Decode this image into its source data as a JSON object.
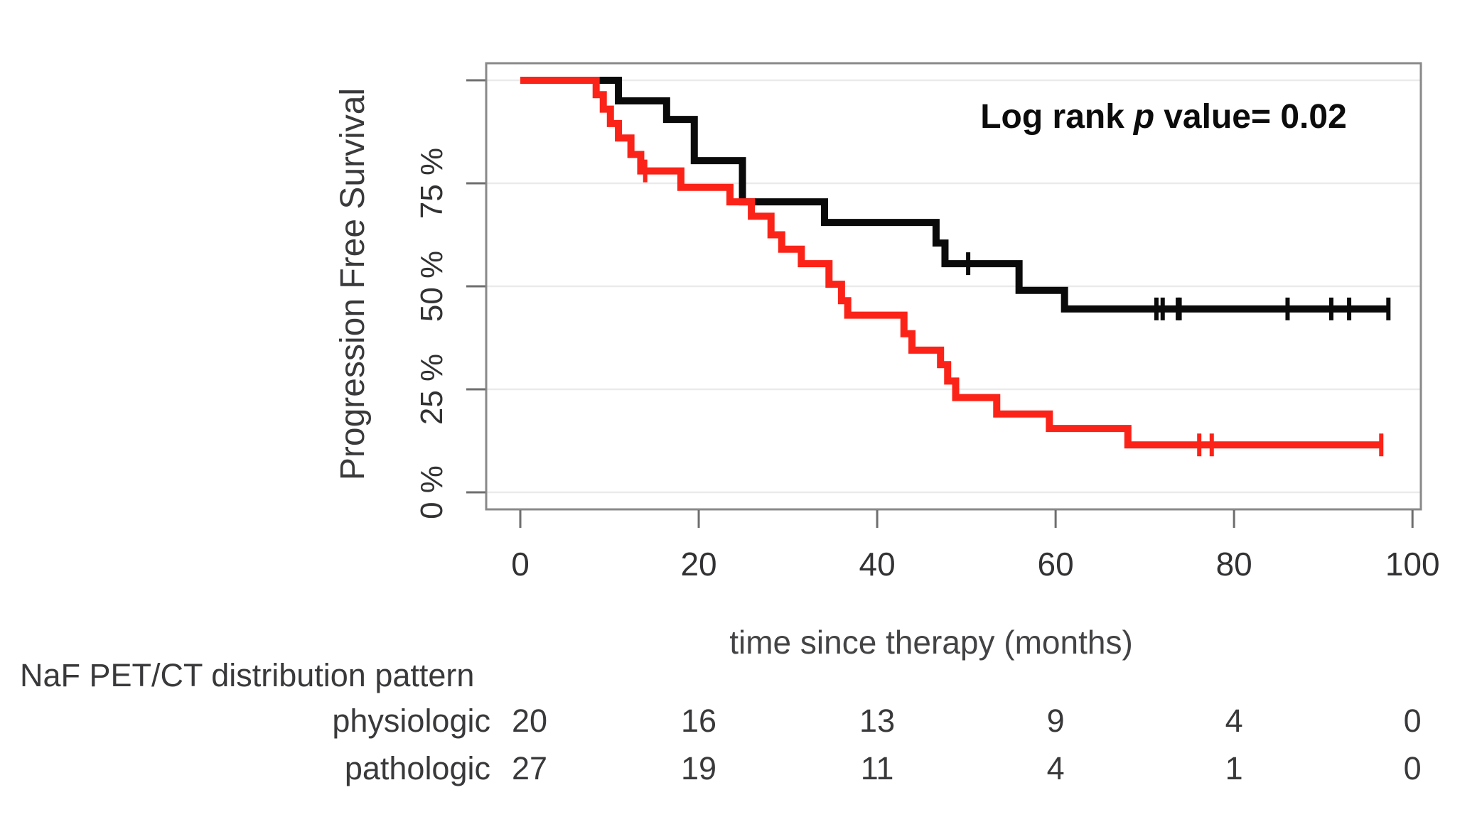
{
  "annotation": {
    "prefix": "Log rank",
    "italic_term": "p",
    "suffix": "value= 0.02",
    "full_text": "Log rank p value= 0.02"
  },
  "axes": {
    "y_label": "Progression Free Survival",
    "x_label": "time since therapy (months)",
    "x_ticks": [
      0,
      20,
      40,
      60,
      80,
      100
    ],
    "y_tick_labels": [
      "0 %",
      "25 %",
      "50 %",
      "75 %"
    ],
    "y_tick_values": [
      0,
      25,
      50,
      75
    ],
    "y_unlabeled_tick": 100
  },
  "risk_table": {
    "header": "NaF PET/CT distribution pattern",
    "time_points": [
      0,
      20,
      40,
      60,
      80,
      100
    ],
    "rows": [
      {
        "label": "physiologic",
        "counts": [
          20,
          16,
          13,
          9,
          4,
          0
        ],
        "count_color": "#2e2e30"
      },
      {
        "label": "pathologic",
        "counts": [
          27,
          19,
          11,
          4,
          1,
          0
        ],
        "count_color": "#f9473f"
      }
    ]
  },
  "chart_data": {
    "type": "line",
    "subtype": "kaplan-meier-step",
    "title": "",
    "xlabel": "time since therapy (months)",
    "ylabel": "Progression Free Survival",
    "xlim": [
      0,
      100
    ],
    "ylim_percent": [
      0,
      100
    ],
    "grid_percent_lines": [
      0,
      25,
      50,
      75,
      100
    ],
    "annotation": "Log rank p value= 0.02",
    "series": [
      {
        "name": "physiologic",
        "color": "#0a0a0a",
        "n_start": 20,
        "steps": [
          [
            0,
            100
          ],
          [
            11,
            95
          ],
          [
            16.4,
            90.5
          ],
          [
            19.5,
            80.5
          ],
          [
            24.9,
            70.5
          ],
          [
            34.1,
            65.5
          ],
          [
            46.6,
            60.5
          ],
          [
            47.6,
            55.5
          ],
          [
            55.9,
            49
          ],
          [
            61,
            44.5
          ]
        ],
        "end_month": 97.3,
        "censor_marks": [
          [
            50.2,
            55.5
          ],
          [
            71.3,
            44.5
          ],
          [
            72.0,
            44.5
          ],
          [
            73.7,
            44.5
          ],
          [
            73.9,
            44.5
          ],
          [
            86,
            44.5
          ],
          [
            90.9,
            44.5
          ],
          [
            92.9,
            44.5
          ],
          [
            97.3,
            44.5
          ]
        ]
      },
      {
        "name": "pathologic",
        "color": "#fb2318",
        "n_start": 27,
        "steps": [
          [
            0,
            100
          ],
          [
            8.5,
            96.5
          ],
          [
            9.3,
            93
          ],
          [
            10.1,
            89.5
          ],
          [
            11,
            86
          ],
          [
            12.4,
            82
          ],
          [
            13.5,
            78
          ],
          [
            18,
            74
          ],
          [
            23.5,
            70.5
          ],
          [
            25.9,
            67
          ],
          [
            28.1,
            62.5
          ],
          [
            29.3,
            59
          ],
          [
            31.5,
            55.5
          ],
          [
            34.6,
            50.5
          ],
          [
            36,
            46.5
          ],
          [
            36.7,
            43
          ],
          [
            43,
            38.5
          ],
          [
            43.9,
            34.5
          ],
          [
            47.1,
            31
          ],
          [
            47.9,
            27
          ],
          [
            48.8,
            23
          ],
          [
            53.4,
            19
          ],
          [
            59.3,
            15.5
          ],
          [
            68.1,
            11.5
          ]
        ],
        "end_month": 96.5,
        "censor_marks": [
          [
            14,
            78
          ],
          [
            76.1,
            11.5
          ],
          [
            77.5,
            11.5
          ],
          [
            96.5,
            11.5
          ]
        ]
      }
    ]
  },
  "colors": {
    "background": "#ffffff",
    "plot_border": "#898989",
    "gridline": "#eaeaea",
    "tick": "#6e6e6e",
    "tick_label": "#323234",
    "axis_label": "#3a3a3c",
    "annotation_text": "#0c0c0c",
    "risk_text": "#39393b",
    "physiologic_curve": "#0a0a0a",
    "pathologic_curve": "#fb2318"
  }
}
